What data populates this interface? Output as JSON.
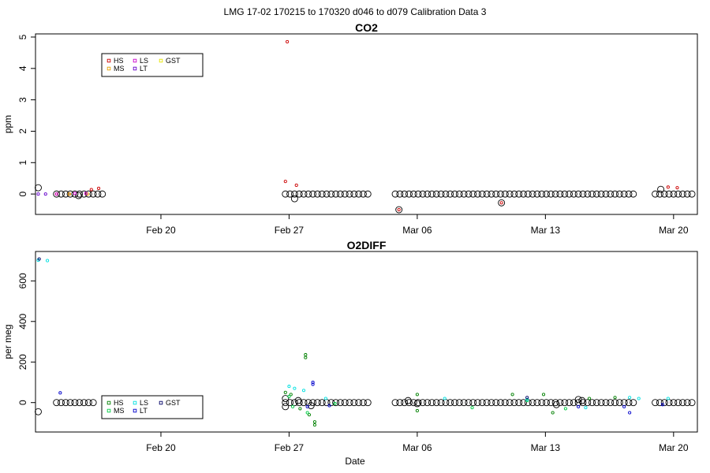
{
  "page_title": "LMG   17-02    170215 to 170320    d046 to d079   Calibration Data 3",
  "xlabel": "Date",
  "x_ticks": [
    {
      "label": "Feb 20",
      "day": 51
    },
    {
      "label": "Feb 27",
      "day": 58
    },
    {
      "label": "Mar 06",
      "day": 65
    },
    {
      "label": "Mar 13",
      "day": 72
    },
    {
      "label": "Mar 20",
      "day": 79
    }
  ],
  "x_range_day": [
    44.15,
    80.3
  ],
  "colors": {
    "HS": "#cc0000",
    "MS": "#e6a000",
    "LS": "#cc00cc",
    "LT": "#6600cc",
    "GST": "#e6e600",
    "sample": "#000000",
    "HS2": "#008000",
    "MS2": "#00cc44",
    "LS2": "#00e0e0",
    "LT2": "#0000cc",
    "GST2": "#000066",
    "blue": "#0066ff"
  },
  "chart_data": [
    {
      "type": "scatter",
      "title": "CO2",
      "xlabel": "",
      "ylabel": "ppm",
      "ylim": [
        -0.65,
        5.1
      ],
      "y_ticks": [
        0,
        1,
        2,
        3,
        4,
        5
      ],
      "grid": false,
      "legend": {
        "position": "top-left",
        "entries": [
          "HS",
          "MS",
          "LS",
          "LT",
          "GST"
        ]
      },
      "series": [
        {
          "name": "HS",
          "color": "HS",
          "points": [
            [
              45.3,
              0.0
            ],
            [
              57.9,
              4.85
            ],
            [
              57.8,
              0.4
            ],
            [
              58.4,
              0.28
            ],
            [
              47.2,
              0.14
            ],
            [
              47.6,
              0.18
            ],
            [
              78.7,
              0.22
            ],
            [
              79.2,
              0.2
            ],
            [
              46.0,
              0.0
            ],
            [
              69.6,
              -0.28
            ],
            [
              64.0,
              -0.5
            ]
          ]
        },
        {
          "name": "MS",
          "color": "MS",
          "points": [
            [
              46.0,
              0.0
            ],
            [
              47.0,
              0.0
            ]
          ]
        },
        {
          "name": "LS",
          "color": "LS",
          "points": [
            [
              45.3,
              0.0
            ],
            [
              46.3,
              0.02
            ],
            [
              46.9,
              0.02
            ]
          ]
        },
        {
          "name": "LT",
          "color": "LT",
          "points": [
            [
              44.3,
              0.0
            ],
            [
              44.7,
              0.0
            ]
          ]
        },
        {
          "name": "GST",
          "color": "GST",
          "points": []
        }
      ],
      "samples": {
        "color": "sample",
        "daily_runs": [
          {
            "from": 45.3,
            "to": 48.0,
            "step": 0.25,
            "y": 0.0
          },
          {
            "from": 57.8,
            "to": 62.5,
            "step": 0.25,
            "y": 0.0
          },
          {
            "from": 63.8,
            "to": 77.0,
            "step": 0.25,
            "y": 0.0
          },
          {
            "from": 78.0,
            "to": 80.0,
            "step": 0.25,
            "y": 0.0
          }
        ],
        "extra_points": [
          [
            44.3,
            0.2
          ],
          [
            46.5,
            -0.05
          ],
          [
            58.3,
            -0.15
          ],
          [
            64.0,
            -0.5
          ],
          [
            69.6,
            -0.28
          ],
          [
            78.3,
            0.15
          ]
        ]
      }
    },
    {
      "type": "scatter",
      "title": "O2DIFF",
      "xlabel": "Date",
      "ylabel": "per meg",
      "ylim": [
        -145,
        745
      ],
      "y_ticks": [
        0,
        200,
        400,
        600
      ],
      "grid": false,
      "legend": {
        "position": "bottom-left",
        "entries": [
          "HS",
          "MS",
          "LS",
          "LT",
          "GST"
        ]
      },
      "series": [
        {
          "name": "HS",
          "color": "HS2",
          "points": [
            [
              58.9,
              236
            ],
            [
              58.9,
              222
            ],
            [
              57.8,
              50
            ],
            [
              58.1,
              40
            ],
            [
              58.6,
              -30
            ],
            [
              59.1,
              -60
            ],
            [
              59.4,
              -110
            ],
            [
              59.4,
              -95
            ],
            [
              65.0,
              40
            ],
            [
              65.0,
              -40
            ],
            [
              70.2,
              40
            ],
            [
              71.9,
              40
            ],
            [
              72.4,
              -50
            ],
            [
              74.4,
              20
            ],
            [
              75.8,
              25
            ]
          ]
        },
        {
          "name": "MS",
          "color": "MS2",
          "points": [
            [
              58.0,
              30
            ],
            [
              58.2,
              -20
            ],
            [
              59.0,
              -50
            ],
            [
              60.5,
              -5
            ],
            [
              68.0,
              -25
            ],
            [
              71.0,
              10
            ],
            [
              73.1,
              -30
            ]
          ]
        },
        {
          "name": "LS",
          "color": "LS2",
          "points": [
            [
              44.3,
              702
            ],
            [
              44.8,
              700
            ],
            [
              58.0,
              80
            ],
            [
              58.3,
              70
            ],
            [
              58.8,
              60
            ],
            [
              60.0,
              20
            ],
            [
              66.5,
              20
            ],
            [
              71.0,
              15
            ],
            [
              74.2,
              -25
            ],
            [
              76.6,
              25
            ],
            [
              77.1,
              20
            ],
            [
              78.7,
              20
            ]
          ]
        },
        {
          "name": "LT",
          "color": "LT2",
          "points": [
            [
              45.5,
              48
            ],
            [
              59.3,
              100
            ],
            [
              59.3,
              90
            ],
            [
              59.0,
              -20
            ],
            [
              60.2,
              -15
            ],
            [
              73.8,
              -20
            ],
            [
              76.3,
              -20
            ],
            [
              76.6,
              -50
            ],
            [
              78.4,
              -10
            ]
          ]
        },
        {
          "name": "GST",
          "color": "GST2",
          "points": [
            [
              44.35,
              708
            ],
            [
              71.0,
              25
            ]
          ]
        }
      ],
      "samples": {
        "color": "sample",
        "daily_runs": [
          {
            "from": 45.3,
            "to": 47.5,
            "step": 0.25,
            "y": 0.0
          },
          {
            "from": 57.8,
            "to": 62.5,
            "step": 0.25,
            "y": 0.0
          },
          {
            "from": 63.8,
            "to": 77.0,
            "step": 0.25,
            "y": 0.0
          },
          {
            "from": 78.0,
            "to": 80.0,
            "step": 0.25,
            "y": 0.0
          }
        ],
        "extra_points": [
          [
            44.3,
            -45
          ],
          [
            57.8,
            20
          ],
          [
            57.8,
            -20
          ],
          [
            58.5,
            10
          ],
          [
            59.2,
            -15
          ],
          [
            64.5,
            10
          ],
          [
            65.0,
            -5
          ],
          [
            72.6,
            -10
          ],
          [
            73.8,
            15
          ],
          [
            74.0,
            10
          ]
        ]
      }
    }
  ]
}
